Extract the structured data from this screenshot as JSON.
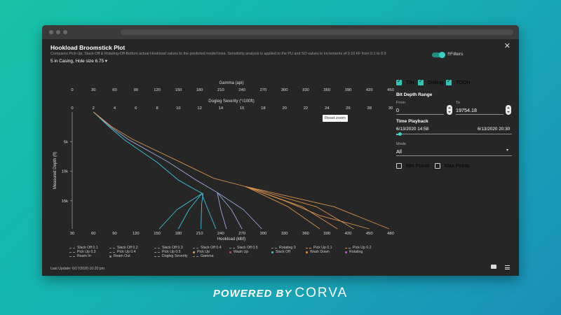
{
  "window": {
    "title": "Hookload Broomstick Plot",
    "subtitle": "Compares Pick-Up, Slack-Off & Rotating-Off-Bottom actual Hookload values to the predicted model lines. Sensitivity analysis is applied to the PU and SO values in increments of 0.10 FF from 0.1 to 0.5",
    "casing": "5 in Casing, Hole size 6.75 ▾",
    "filters_label": "Filters",
    "reset_zoom": "Reset zoom",
    "last_update": "Last Update: 6/17/2020 10:20 pm"
  },
  "sidebar": {
    "checks": [
      {
        "label": "TIH",
        "checked": true
      },
      {
        "label": "Drilling",
        "checked": true
      },
      {
        "label": "TOOH",
        "checked": true
      }
    ],
    "bit_depth_range": "Bit Depth Range",
    "from_label": "From",
    "from_value": "0",
    "to_label": "To",
    "to_value": "19754.18",
    "time_playback": "Time Playback",
    "time_start": "6/13/2020 14:58",
    "time_end": "6/13/2020 20:30",
    "time_playback_position": 0.03,
    "mode_label": "Mode",
    "mode_value": "All",
    "min_points": "Min Points",
    "max_points": "Max Points"
  },
  "legend": [
    {
      "label": "Slack Off 0.1",
      "kind": "dash",
      "color": "#8a8a8a"
    },
    {
      "label": "Slack Off 0.2",
      "kind": "dash",
      "color": "#8a8a8a"
    },
    {
      "label": "Slack Off 0.3",
      "kind": "dash",
      "color": "#8a8a8a"
    },
    {
      "label": "Slack Off 0.4",
      "kind": "dash",
      "color": "#8a8a8a"
    },
    {
      "label": "Slack Off 0.5",
      "kind": "dash",
      "color": "#8a8a8a"
    },
    {
      "label": "Rotating 0",
      "kind": "dash",
      "color": "#8a8a8a"
    },
    {
      "label": "Pick Up 0.1",
      "kind": "dash",
      "color": "#d9914a"
    },
    {
      "label": "Pick Up 0.2",
      "kind": "dash",
      "color": "#d9914a"
    },
    {
      "label": "Pick Up 0.3",
      "kind": "dash",
      "color": "#8a8a8a"
    },
    {
      "label": "Pick Up 0.4",
      "kind": "dash",
      "color": "#8a8a8a"
    },
    {
      "label": "Pick Up 0.5",
      "kind": "dash",
      "color": "#8a8a8a"
    },
    {
      "label": "Pick Up",
      "kind": "dot",
      "color": "#f0a040"
    },
    {
      "label": "Wash Up",
      "kind": "dot",
      "color": "#d04a4a"
    },
    {
      "label": "Slack Off",
      "kind": "dot",
      "color": "#40c8e0"
    },
    {
      "label": "Wash Down",
      "kind": "dot",
      "color": "#e08a40"
    },
    {
      "label": "Rotating",
      "kind": "dot",
      "color": "#c060c0"
    },
    {
      "label": "Ream In",
      "kind": "dash",
      "color": "#8a8a8a"
    },
    {
      "label": "Ream Out",
      "kind": "dot",
      "color": "#8a8a8a"
    },
    {
      "label": "Dogleg Severity",
      "kind": "dash",
      "color": "#8a8a8a"
    },
    {
      "label": "Gamma",
      "kind": "dash",
      "color": "#8a8a8a"
    }
  ],
  "chart_data": {
    "type": "line",
    "xlabel": "Hookload (klbf)",
    "ylabel": "Measured Depth (ft)",
    "x_ticks": [
      30,
      60,
      90,
      120,
      150,
      180,
      210,
      240,
      270,
      300,
      330,
      360,
      390,
      420,
      450,
      480
    ],
    "xlim": [
      30,
      480
    ],
    "y_ticks": [
      5000,
      10000,
      15000
    ],
    "y_tick_labels": [
      "5k",
      "10k",
      "15k"
    ],
    "ylim": [
      0,
      19754
    ],
    "top_axis_1": {
      "label": "Gamma (api)",
      "ticks": [
        0,
        30,
        60,
        90,
        120,
        150,
        180,
        210,
        240,
        270,
        300,
        330,
        360,
        390,
        420,
        450
      ],
      "lim": [
        0,
        450
      ]
    },
    "top_axis_2": {
      "label": "Dogleg Severity (°/100ft)",
      "ticks": [
        0,
        2,
        4,
        6,
        8,
        10,
        12,
        14,
        16,
        18,
        20,
        22,
        24,
        26,
        28,
        30
      ],
      "lim": [
        0,
        30
      ]
    },
    "shared_start": [
      [
        60,
        0
      ],
      [
        80,
        2500
      ],
      [
        100,
        4500
      ]
    ],
    "series": [
      {
        "group": "slackoff",
        "color": "#39c4e0",
        "points": [
          [
            60,
            0
          ],
          [
            82,
            2500
          ],
          [
            105,
            4800
          ],
          [
            150,
            8500
          ],
          [
            180,
            11500
          ],
          [
            205,
            13200
          ],
          [
            215,
            13800
          ],
          [
            213,
            15500
          ],
          [
            212,
            19754
          ]
        ]
      },
      {
        "group": "slackoff",
        "color": "#39c4e0",
        "points": [
          [
            213,
            13800
          ],
          [
            195,
            16500
          ],
          [
            180,
            19754
          ]
        ]
      },
      {
        "group": "slackoff",
        "color": "#39c4e0",
        "points": [
          [
            213,
            13800
          ],
          [
            178,
            16500
          ],
          [
            153,
            19754
          ]
        ]
      },
      {
        "group": "slackoff",
        "color": "#39c4e0",
        "points": [
          [
            213,
            13800
          ],
          [
            222,
            16500
          ],
          [
            233,
            19754
          ]
        ]
      },
      {
        "group": "rotating",
        "color": "#9aa8d8",
        "points": [
          [
            60,
            0
          ],
          [
            84,
            2500
          ],
          [
            110,
            4700
          ],
          [
            165,
            8400
          ],
          [
            205,
            11500
          ],
          [
            235,
            13600
          ],
          [
            255,
            16500
          ],
          [
            270,
            19754
          ]
        ]
      },
      {
        "group": "rotating",
        "color": "#9aa8d8",
        "points": [
          [
            235,
            13600
          ],
          [
            240,
            16500
          ],
          [
            248,
            19754
          ]
        ]
      },
      {
        "group": "rotating",
        "color": "#9aa8d8",
        "points": [
          [
            235,
            13600
          ],
          [
            272,
            16500
          ],
          [
            298,
            19754
          ]
        ]
      },
      {
        "group": "pickup",
        "color": "#d9914a",
        "points": [
          [
            60,
            0
          ],
          [
            86,
            2500
          ],
          [
            115,
            4600
          ],
          [
            180,
            8300
          ],
          [
            230,
            11200
          ],
          [
            275,
            12600
          ],
          [
            330,
            15000
          ],
          [
            380,
            17500
          ],
          [
            450,
            19754
          ]
        ]
      },
      {
        "group": "pickup",
        "color": "#d9914a",
        "points": [
          [
            275,
            12600
          ],
          [
            335,
            16000
          ],
          [
            380,
            19754
          ]
        ]
      },
      {
        "group": "pickup",
        "color": "#d9914a",
        "points": [
          [
            275,
            12600
          ],
          [
            355,
            16000
          ],
          [
            405,
            19754
          ]
        ]
      },
      {
        "group": "pickup",
        "color": "#d9914a",
        "points": [
          [
            275,
            12600
          ],
          [
            375,
            16000
          ],
          [
            428,
            19754
          ]
        ]
      },
      {
        "group": "pickup",
        "color": "#d9914a",
        "points": [
          [
            275,
            12600
          ],
          [
            400,
            16000
          ],
          [
            478,
            19754
          ]
        ]
      }
    ]
  }
}
